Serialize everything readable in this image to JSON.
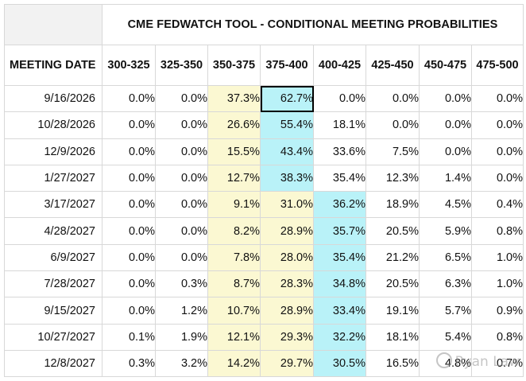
{
  "title": "CME FEDWATCH TOOL - CONDITIONAL MEETING PROBABILITIES",
  "date_header": "MEETING DATE",
  "columns": [
    "300-325",
    "325-350",
    "350-375",
    "375-400",
    "400-425",
    "425-450",
    "450-475",
    "475-500"
  ],
  "rows": [
    {
      "date": "9/16/2026",
      "values": [
        "0.0%",
        "0.0%",
        "37.3%",
        "62.7%",
        "0.0%",
        "0.0%",
        "0.0%",
        "0.0%"
      ]
    },
    {
      "date": "10/28/2026",
      "values": [
        "0.0%",
        "0.0%",
        "26.6%",
        "55.4%",
        "18.1%",
        "0.0%",
        "0.0%",
        "0.0%"
      ]
    },
    {
      "date": "12/9/2026",
      "values": [
        "0.0%",
        "0.0%",
        "15.5%",
        "43.4%",
        "33.6%",
        "7.5%",
        "0.0%",
        "0.0%"
      ]
    },
    {
      "date": "1/27/2027",
      "values": [
        "0.0%",
        "0.0%",
        "12.7%",
        "38.3%",
        "35.4%",
        "12.3%",
        "1.4%",
        "0.0%"
      ]
    },
    {
      "date": "3/17/2027",
      "values": [
        "0.0%",
        "0.0%",
        "9.1%",
        "31.0%",
        "36.2%",
        "18.9%",
        "4.5%",
        "0.4%"
      ]
    },
    {
      "date": "4/28/2027",
      "values": [
        "0.0%",
        "0.0%",
        "8.2%",
        "28.9%",
        "35.7%",
        "20.5%",
        "5.9%",
        "0.8%"
      ]
    },
    {
      "date": "6/9/2027",
      "values": [
        "0.0%",
        "0.0%",
        "7.8%",
        "28.0%",
        "35.4%",
        "21.2%",
        "6.5%",
        "1.0%"
      ]
    },
    {
      "date": "7/28/2027",
      "values": [
        "0.0%",
        "0.3%",
        "8.7%",
        "28.3%",
        "34.8%",
        "20.5%",
        "6.3%",
        "1.0%"
      ]
    },
    {
      "date": "9/15/2027",
      "values": [
        "0.0%",
        "1.2%",
        "10.7%",
        "28.9%",
        "33.4%",
        "19.1%",
        "5.7%",
        "0.9%"
      ]
    },
    {
      "date": "10/27/2027",
      "values": [
        "0.1%",
        "1.9%",
        "12.1%",
        "29.3%",
        "32.2%",
        "18.1%",
        "5.4%",
        "0.8%"
      ]
    },
    {
      "date": "12/8/2027",
      "values": [
        "0.3%",
        "3.2%",
        "14.2%",
        "29.7%",
        "30.5%",
        "16.5%",
        "4.8%",
        "0.7%"
      ]
    }
  ],
  "highlight_colors": {
    "yellow": "#fbf8d2",
    "cyan": "#b9f2f8",
    "selected_border": "#000000"
  },
  "watermark": "Ryan Law"
}
